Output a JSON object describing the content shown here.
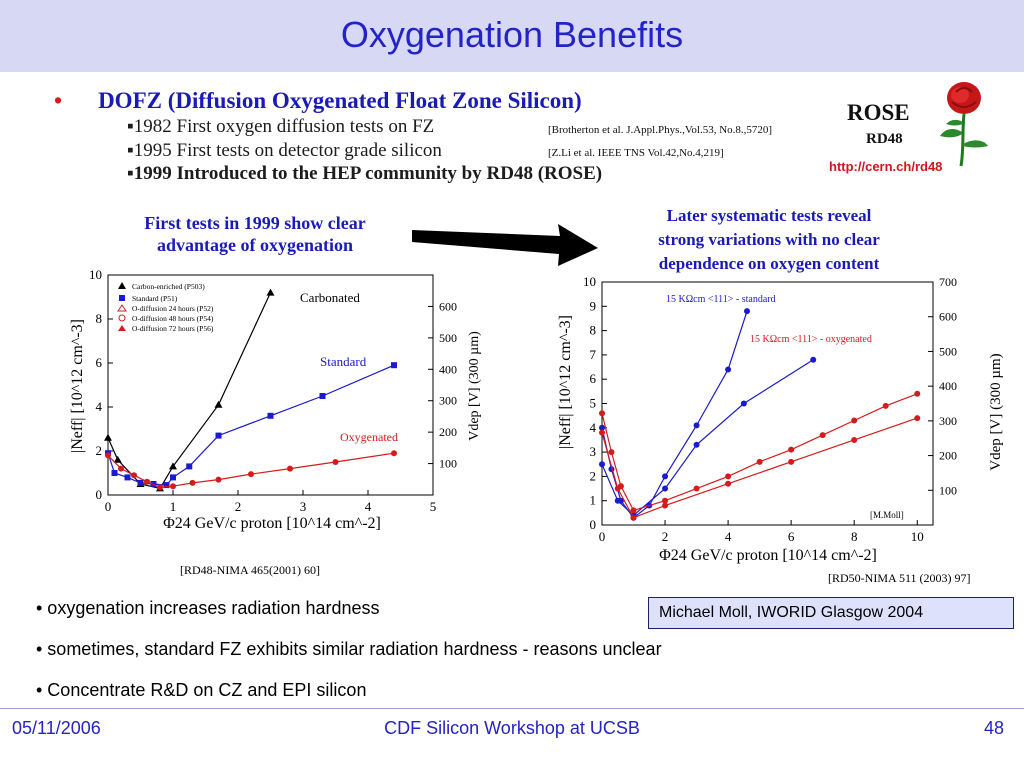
{
  "slide": {
    "title": "Oxygenation Benefits"
  },
  "header_bullet": {
    "text": "DOFZ (Diffusion Oxygenated Float Zone Silicon)",
    "items": [
      {
        "text": "1982 First oxygen diffusion tests on FZ",
        "ref": "[Brotherton et al. J.Appl.Phys.,Vol.53, No.8.,5720]"
      },
      {
        "text": "1995 First tests on detector grade silicon",
        "ref": "[Z.Li et al. IEEE TNS Vol.42,No.4,219]"
      },
      {
        "text": "1999 Introduced to the HEP community by RD48 (ROSE)",
        "ref": ""
      }
    ]
  },
  "rose_logo": {
    "word": "ROSE",
    "subtitle": "RD48",
    "link": "http://cern.ch/rd48",
    "icon": "rose-flower-icon"
  },
  "left_caption": {
    "line1": "First tests in 1999 show clear",
    "line2": "advantage of oxygenation"
  },
  "right_caption": {
    "line1": "Later systematic tests reveal",
    "line2": "strong variations with no clear",
    "line3": "dependence on oxygen content"
  },
  "left_chart_ref": "[RD48-NIMA 465(2001) 60]",
  "right_chart_ref": "[RD50-NIMA 511 (2003) 97]",
  "right_chart_watermark": "[M.Moll]",
  "bottom_bullets": [
    "• oxygenation increases radiation hardness",
    "• sometimes, standard FZ exhibits similar radiation hardness - reasons unclear",
    "• Concentrate R&D on CZ and EPI silicon"
  ],
  "credit": "Michael Moll, IWORID Glasgow 2004",
  "footer": {
    "date": "05/11/2006",
    "center": "CDF Silicon Workshop at UCSB",
    "page": "48"
  },
  "chart_data": [
    {
      "type": "scatter",
      "xlabel": "Φ24 GeV/c proton [10^14 cm^-2]",
      "ylabel": "|Neff| [10^12 cm^-3]",
      "y2label": "Vdep [V] (300 µm)",
      "xlim": [
        0,
        5
      ],
      "ylim": [
        0,
        10
      ],
      "y2lim": [
        0,
        700
      ],
      "xticks": [
        "0",
        "1",
        "2",
        "3",
        "4",
        "5"
      ],
      "yticks": [
        "0",
        "2",
        "4",
        "6",
        "8",
        "10"
      ],
      "y2ticks": [
        "100",
        "200",
        "300",
        "400",
        "500",
        "600"
      ],
      "legend": [
        "Carbon-enriched (P503)",
        "Standard (P51)",
        "O-diffusion 24 hours (P52)",
        "O-diffusion 48 hours (P54)",
        "O-diffusion 72 hours (P56)"
      ],
      "annotations": [
        "Carbonated",
        "Standard",
        "Oxygenated"
      ],
      "series": [
        {
          "name": "Carbonated",
          "color": "#000000",
          "x": [
            0.0,
            0.15,
            0.5,
            0.8,
            1.0,
            1.7,
            2.5
          ],
          "y": [
            2.6,
            1.6,
            0.5,
            0.3,
            1.3,
            4.1,
            9.2
          ]
        },
        {
          "name": "Standard",
          "color": "#1a1ad0",
          "x": [
            0.0,
            0.1,
            0.3,
            0.5,
            0.7,
            0.9,
            1.0,
            1.25,
            1.7,
            2.5,
            3.3,
            4.4
          ],
          "y": [
            1.9,
            1.0,
            0.8,
            0.55,
            0.5,
            0.45,
            0.8,
            1.3,
            2.7,
            3.6,
            4.5,
            5.9
          ]
        },
        {
          "name": "Oxygenated",
          "color": "#d41c1c",
          "x": [
            0.0,
            0.2,
            0.4,
            0.6,
            0.8,
            1.0,
            1.3,
            1.7,
            2.2,
            2.8,
            3.5,
            4.4
          ],
          "y": [
            1.8,
            1.2,
            0.9,
            0.6,
            0.35,
            0.4,
            0.55,
            0.7,
            0.95,
            1.2,
            1.5,
            1.9
          ]
        }
      ]
    },
    {
      "type": "scatter",
      "xlabel": "Φ24 GeV/c proton [10^14 cm^-2]",
      "ylabel": "|Neff| [10^12 cm^-3]",
      "y2label": "Vdep [V] (300 µm)",
      "xlim": [
        0,
        10.5
      ],
      "ylim": [
        0,
        10
      ],
      "y2lim": [
        0,
        700
      ],
      "xticks": [
        "0",
        "2",
        "4",
        "6",
        "8",
        "10"
      ],
      "yticks": [
        "0",
        "1",
        "2",
        "3",
        "4",
        "5",
        "6",
        "7",
        "8",
        "9",
        "10"
      ],
      "y2ticks": [
        "100",
        "200",
        "300",
        "400",
        "500",
        "600",
        "700"
      ],
      "annotations": [
        "15 KΩcm <111> - standard",
        "15 KΩcm <111> - oxygenated"
      ],
      "series": [
        {
          "name": "15 KΩcm <111> - standard",
          "color": "#1a1ad0",
          "x": [
            0.0,
            0.3,
            0.6,
            1.0,
            1.5,
            2.0,
            3.0,
            4.0,
            4.6
          ],
          "y": [
            4.0,
            2.3,
            1.0,
            0.3,
            0.8,
            2.0,
            4.1,
            6.4,
            8.8
          ]
        },
        {
          "name": "standard-2",
          "color": "#1a1ad0",
          "x": [
            0.0,
            0.5,
            1.0,
            2.0,
            3.0,
            4.5,
            6.7
          ],
          "y": [
            2.5,
            1.0,
            0.4,
            1.5,
            3.3,
            5.0,
            6.8
          ]
        },
        {
          "name": "15 KΩcm <111> - oxygenated",
          "color": "#d41c1c",
          "x": [
            0.0,
            0.3,
            0.6,
            1.0,
            2.0,
            3.0,
            4.0,
            5.0,
            6.0,
            7.0,
            8.0,
            9.0,
            10.0
          ],
          "y": [
            4.6,
            3.0,
            1.6,
            0.6,
            1.0,
            1.5,
            2.0,
            2.6,
            3.1,
            3.7,
            4.3,
            4.9,
            5.4
          ]
        },
        {
          "name": "oxygenated-2",
          "color": "#d41c1c",
          "x": [
            0.0,
            0.5,
            1.0,
            2.0,
            4.0,
            6.0,
            8.0,
            10.0
          ],
          "y": [
            3.8,
            1.5,
            0.3,
            0.8,
            1.7,
            2.6,
            3.5,
            4.4
          ]
        }
      ]
    }
  ]
}
